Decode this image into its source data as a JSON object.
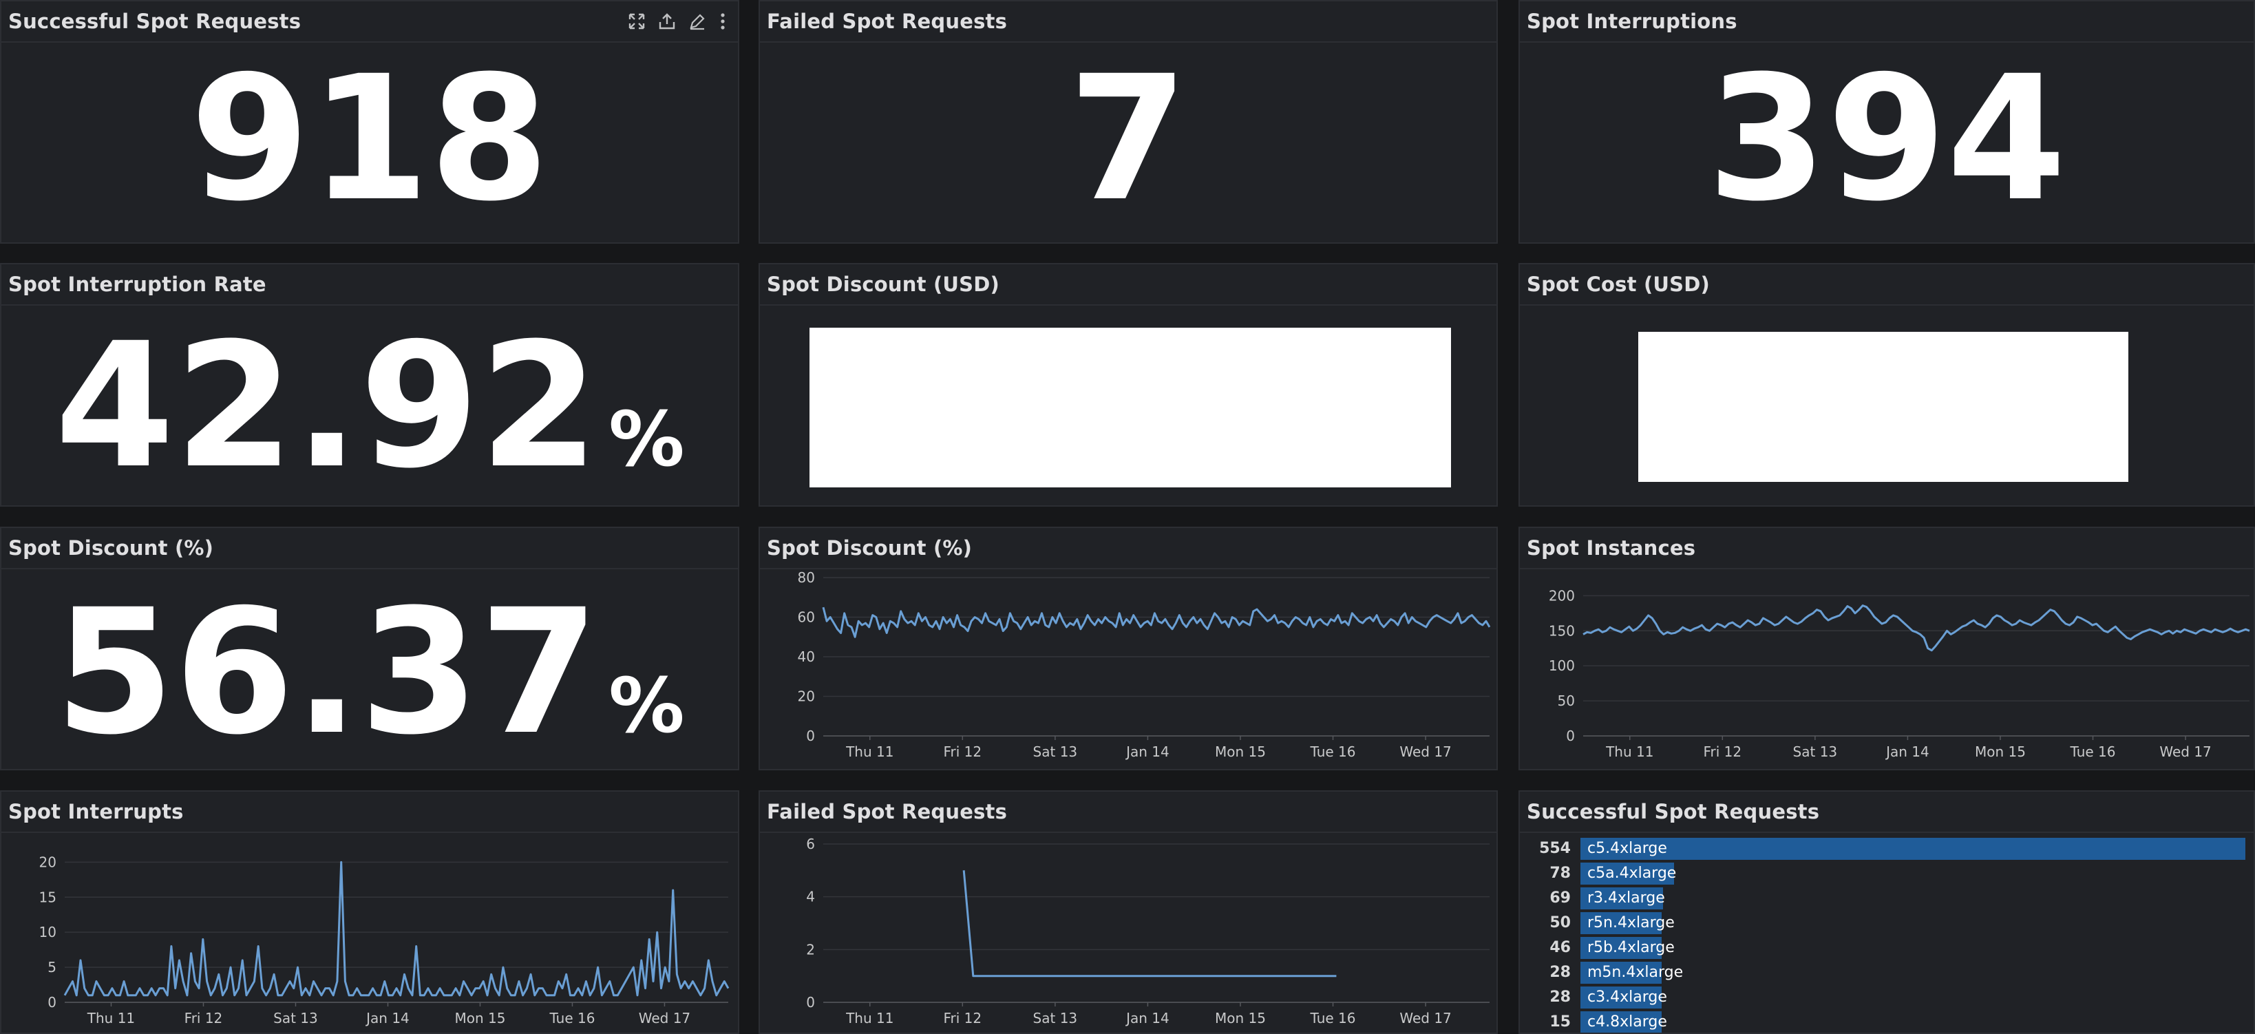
{
  "stat_panels": {
    "successful_spot_requests": {
      "title": "Successful Spot Requests",
      "value": "918"
    },
    "failed_spot_requests": {
      "title": "Failed Spot Requests",
      "value": "7"
    },
    "spot_interruptions": {
      "title": "Spot Interruptions",
      "value": "394"
    },
    "spot_interruption_rate": {
      "title": "Spot Interruption Rate",
      "value": "42.92",
      "unit": "%"
    },
    "spot_discount_usd": {
      "title": "Spot Discount (USD)"
    },
    "spot_cost_usd": {
      "title": "Spot Cost (USD)"
    },
    "spot_discount_pct_stat": {
      "title": "Spot Discount (%)",
      "value": "56.37",
      "unit": "%"
    }
  },
  "panel_tools": [
    "expand-icon",
    "share-icon",
    "edit-icon",
    "more-vertical-icon"
  ],
  "x_ticks": [
    "Thu 11",
    "Fri 12",
    "Sat 13",
    "Jan 14",
    "Mon 15",
    "Tue 16",
    "Wed 17"
  ],
  "colors": {
    "series": "#6a9fd4",
    "bar": "#1f5c99",
    "panel_bg": "#202226",
    "page_bg": "#161719"
  },
  "chart_data": [
    {
      "id": "spot_discount_pct_chart",
      "type": "line",
      "title": "Spot Discount (%)",
      "ylim": [
        0,
        80
      ],
      "yticks": [
        0,
        20,
        40,
        60,
        80
      ],
      "x_ticks": [
        "Thu 11",
        "Fri 12",
        "Sat 13",
        "Jan 14",
        "Mon 15",
        "Tue 16",
        "Wed 17"
      ],
      "series": [
        {
          "values": [
            65,
            58,
            60,
            57,
            54,
            52,
            62,
            56,
            55,
            50,
            58,
            56,
            57,
            55,
            61,
            60,
            54,
            57,
            52,
            58,
            57,
            55,
            63,
            59,
            57,
            58,
            56,
            62,
            58,
            60,
            56,
            55,
            58,
            54,
            60,
            57,
            59,
            55,
            61,
            56,
            55,
            53,
            58,
            60,
            59,
            57,
            62,
            58,
            57,
            56,
            59,
            53,
            55,
            62,
            58,
            57,
            54,
            57,
            60,
            56,
            58,
            57,
            62,
            56,
            55,
            60,
            57,
            62,
            58,
            55,
            57,
            56,
            59,
            54,
            57,
            61,
            58,
            56,
            59,
            57,
            60,
            58,
            57,
            55,
            62,
            56,
            59,
            57,
            61,
            58,
            55,
            57,
            58,
            56,
            62,
            58,
            57,
            59,
            56,
            54,
            57,
            61,
            57,
            55,
            58,
            60,
            57,
            59,
            56,
            54,
            58,
            62,
            60,
            57,
            58,
            55,
            60,
            59,
            56,
            58,
            57,
            56,
            63,
            64,
            62,
            60,
            58,
            59,
            61,
            57,
            58,
            57,
            55,
            58,
            60,
            59,
            57,
            56,
            60,
            55,
            58,
            59,
            57,
            56,
            59,
            58,
            61,
            57,
            58,
            56,
            62,
            60,
            58,
            57,
            59,
            60,
            58,
            61,
            57,
            55,
            57,
            59,
            58,
            56,
            60,
            62,
            57,
            60,
            58,
            57,
            56,
            55,
            58,
            60,
            61,
            60,
            59,
            58,
            57,
            59,
            62,
            57,
            58,
            60,
            61,
            59,
            57,
            56,
            58,
            55
          ]
        }
      ]
    },
    {
      "id": "spot_instances_chart",
      "type": "line",
      "title": "Spot Instances",
      "ylim": [
        0,
        220
      ],
      "yticks": [
        0,
        50,
        100,
        150,
        200
      ],
      "x_ticks": [
        "Thu 11",
        "Fri 12",
        "Sat 13",
        "Jan 14",
        "Mon 15",
        "Tue 16",
        "Wed 17"
      ],
      "series": [
        {
          "values": [
            145,
            148,
            147,
            150,
            152,
            148,
            150,
            155,
            152,
            150,
            148,
            152,
            156,
            150,
            153,
            158,
            165,
            172,
            168,
            160,
            150,
            145,
            148,
            146,
            147,
            150,
            155,
            152,
            150,
            153,
            155,
            158,
            152,
            150,
            155,
            160,
            158,
            155,
            160,
            162,
            158,
            155,
            160,
            165,
            162,
            158,
            160,
            168,
            165,
            162,
            158,
            160,
            165,
            170,
            166,
            162,
            160,
            163,
            168,
            172,
            175,
            180,
            178,
            170,
            165,
            168,
            170,
            172,
            178,
            185,
            182,
            175,
            180,
            186,
            184,
            178,
            170,
            165,
            160,
            162,
            168,
            172,
            170,
            165,
            160,
            155,
            150,
            148,
            145,
            140,
            125,
            122,
            128,
            135,
            142,
            150,
            145,
            148,
            152,
            156,
            158,
            162,
            165,
            160,
            158,
            155,
            160,
            168,
            172,
            170,
            165,
            162,
            158,
            160,
            165,
            162,
            160,
            158,
            162,
            165,
            170,
            175,
            180,
            178,
            172,
            165,
            160,
            158,
            162,
            170,
            168,
            165,
            162,
            158,
            160,
            155,
            150,
            148,
            152,
            156,
            150,
            145,
            140,
            138,
            142,
            145,
            148,
            150,
            152,
            150,
            148,
            145,
            148,
            150,
            146,
            150,
            148,
            152,
            150,
            148,
            146,
            150,
            152,
            150,
            148,
            152,
            150,
            148,
            150,
            153,
            150,
            148,
            150,
            152,
            150
          ]
        }
      ]
    },
    {
      "id": "spot_interrupts_chart",
      "type": "line",
      "title": "Spot Interrupts",
      "ylim": [
        0,
        22
      ],
      "yticks": [
        0,
        5,
        10,
        15,
        20
      ],
      "x_ticks": [
        "Thu 11",
        "Fri 12",
        "Sat 13",
        "Jan 14",
        "Mon 15",
        "Tue 16",
        "Wed 17"
      ],
      "series": [
        {
          "values": [
            1,
            2,
            3,
            1,
            6,
            2,
            1,
            1,
            3,
            2,
            1,
            1,
            2,
            1,
            1,
            3,
            1,
            1,
            1,
            2,
            1,
            1,
            2,
            1,
            2,
            2,
            1,
            8,
            2,
            6,
            3,
            1,
            7,
            3,
            2,
            9,
            3,
            1,
            2,
            4,
            1,
            2,
            5,
            1,
            2,
            6,
            1,
            2,
            3,
            8,
            2,
            1,
            2,
            4,
            1,
            1,
            2,
            3,
            2,
            5,
            1,
            2,
            1,
            3,
            2,
            1,
            2,
            2,
            1,
            3,
            20,
            3,
            1,
            1,
            2,
            1,
            1,
            1,
            2,
            1,
            1,
            3,
            1,
            1,
            2,
            1,
            4,
            2,
            1,
            8,
            1,
            1,
            2,
            1,
            1,
            2,
            1,
            1,
            1,
            2,
            1,
            3,
            2,
            1,
            2,
            2,
            3,
            1,
            4,
            2,
            1,
            5,
            2,
            1,
            1,
            3,
            1,
            2,
            4,
            1,
            2,
            2,
            1,
            1,
            1,
            3,
            2,
            4,
            1,
            1,
            2,
            1,
            3,
            1,
            2,
            5,
            1,
            2,
            3,
            1,
            1,
            2,
            3,
            4,
            5,
            1,
            6,
            2,
            9,
            3,
            10,
            2,
            5,
            3,
            16,
            4,
            2,
            3,
            2,
            3,
            2,
            1,
            2,
            6,
            3,
            1,
            2,
            3,
            2
          ]
        }
      ]
    },
    {
      "id": "failed_spot_requests_chart",
      "type": "line",
      "title": "Failed Spot Requests",
      "ylim": [
        0,
        6
      ],
      "yticks": [
        0,
        2,
        4,
        6
      ],
      "x_ticks": [
        "Thu 11",
        "Fri 12",
        "Sat 13",
        "Jan 14",
        "Mon 15",
        "Tue 16",
        "Wed 17"
      ],
      "series": [
        {
          "x_frac": [
            0.211,
            0.225,
            0.77
          ],
          "values": [
            5,
            1,
            1
          ]
        }
      ]
    },
    {
      "id": "successful_spot_requests_bars",
      "type": "bar",
      "title": "Successful Spot Requests",
      "categories": [
        "c5.4xlarge",
        "c5a.4xlarge",
        "r3.4xlarge",
        "r5n.4xlarge",
        "r5b.4xlarge",
        "m5n.4xlarge",
        "c3.4xlarge",
        "c4.8xlarge"
      ],
      "values": [
        554,
        78,
        69,
        50,
        46,
        28,
        28,
        15
      ]
    }
  ]
}
